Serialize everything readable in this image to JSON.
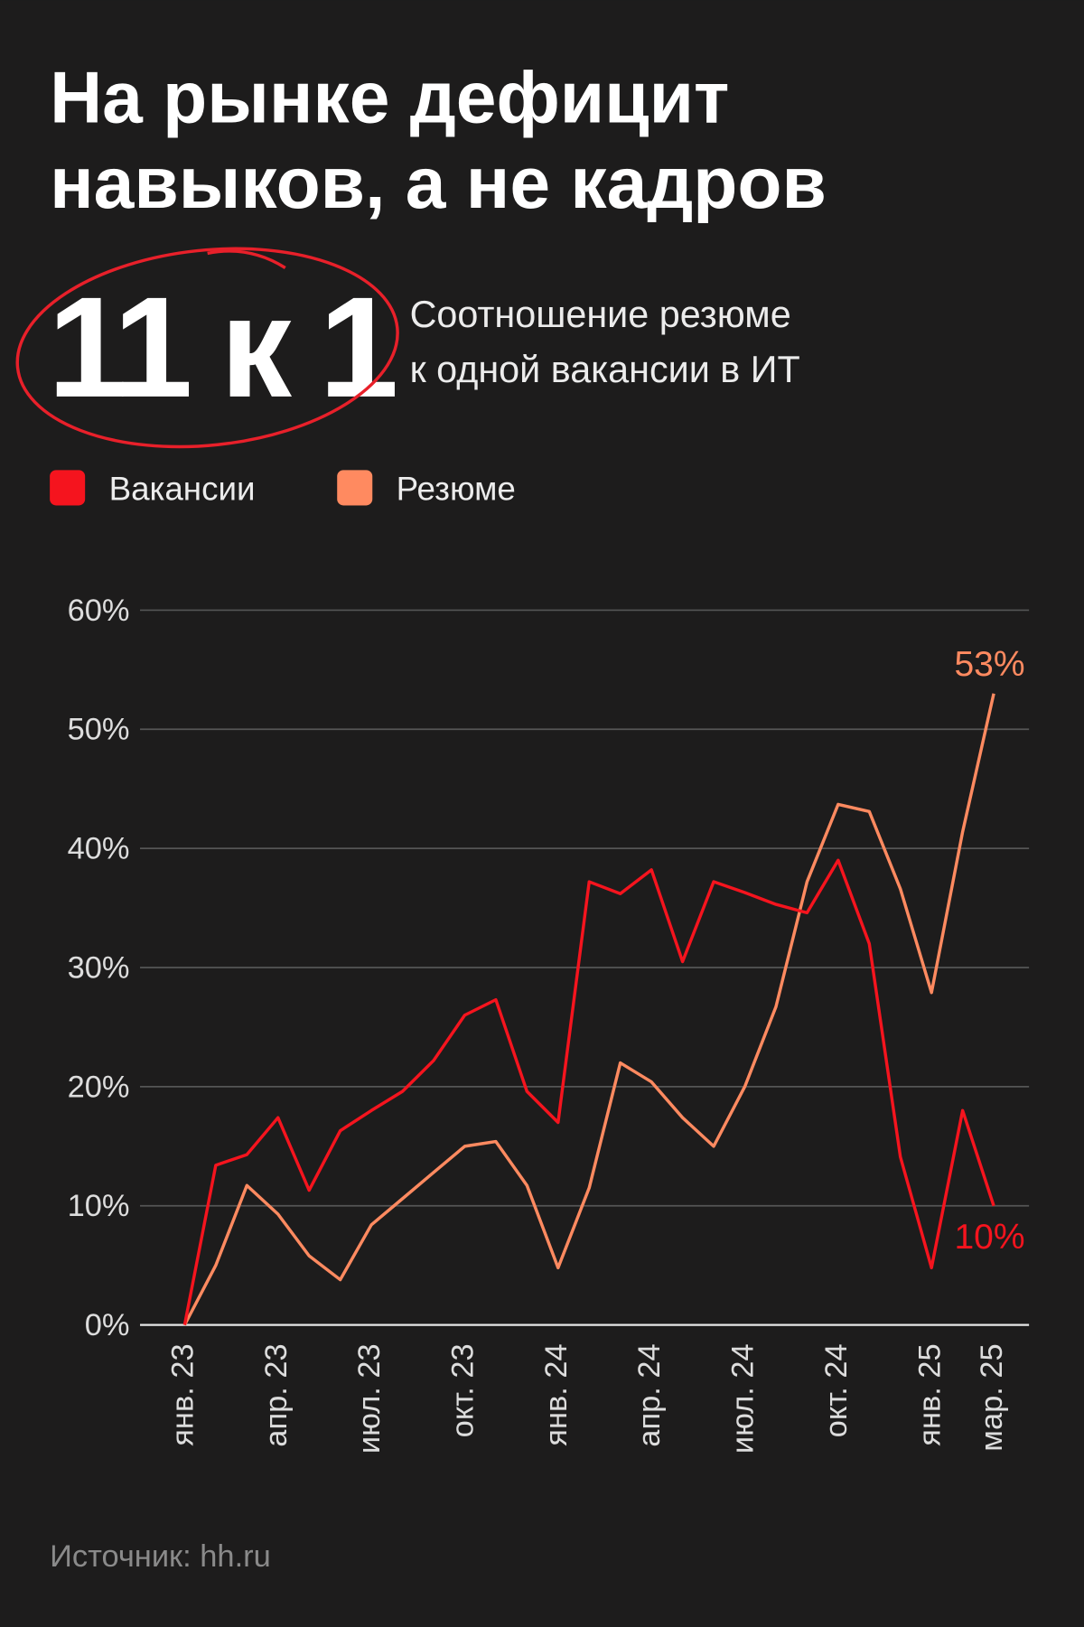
{
  "chart_data": {
    "type": "line",
    "title": [
      "На рынке дефицит",
      "навыков, а не кадров"
    ],
    "highlight": "11 к 1",
    "subtitle": [
      "Соотношение резюме",
      "к одной вакансии в ИТ"
    ],
    "source": "Источник: hh.ru",
    "categories": [
      "янв. 23",
      null,
      null,
      "апр. 23",
      null,
      null,
      "июл. 23",
      null,
      null,
      "окт. 23",
      null,
      null,
      "янв. 24",
      null,
      null,
      "апр. 24",
      null,
      null,
      "июл. 24",
      null,
      null,
      "окт. 24",
      null,
      null,
      "янв. 25",
      null,
      "мар. 25"
    ],
    "series": [
      {
        "name": "Вакансии",
        "color": "#f5141e",
        "values": [
          0,
          13.4,
          14.3,
          17.4,
          11.3,
          16.3,
          18,
          19.6,
          22.2,
          26,
          27.3,
          19.6,
          17,
          37.2,
          36.2,
          38.2,
          30.5,
          37.2,
          36.3,
          35.3,
          34.6,
          39,
          32,
          14.1,
          4.8,
          18,
          10
        ],
        "value_labels": [
          null,
          null,
          null,
          null,
          null,
          null,
          null,
          null,
          null,
          null,
          null,
          null,
          null,
          null,
          null,
          null,
          null,
          null,
          null,
          null,
          null,
          null,
          null,
          null,
          null,
          null,
          "10%"
        ]
      },
      {
        "name": "Резюме",
        "color": "#ff8a60",
        "values": [
          0,
          5,
          11.7,
          9.3,
          5.8,
          3.8,
          8.4,
          10.6,
          12.8,
          15,
          15.4,
          11.7,
          4.8,
          11.5,
          22,
          20.4,
          17.4,
          15,
          20,
          26.7,
          37.2,
          43.7,
          43.1,
          36.6,
          27.9,
          41.4,
          53
        ],
        "value_labels": [
          null,
          null,
          null,
          null,
          null,
          null,
          null,
          null,
          null,
          null,
          null,
          null,
          null,
          null,
          null,
          null,
          null,
          null,
          null,
          null,
          null,
          null,
          null,
          null,
          null,
          null,
          "53%"
        ]
      }
    ],
    "ylim": [
      0,
      60
    ],
    "yticks": [
      {
        "value": 0,
        "label": "0%"
      },
      {
        "value": 10,
        "label": "10%"
      },
      {
        "value": 20,
        "label": "20%"
      },
      {
        "value": 30,
        "label": "30%"
      },
      {
        "value": 40,
        "label": "40%"
      },
      {
        "value": 50,
        "label": "50%"
      },
      {
        "value": 60,
        "label": "60%"
      }
    ],
    "grid": true
  }
}
